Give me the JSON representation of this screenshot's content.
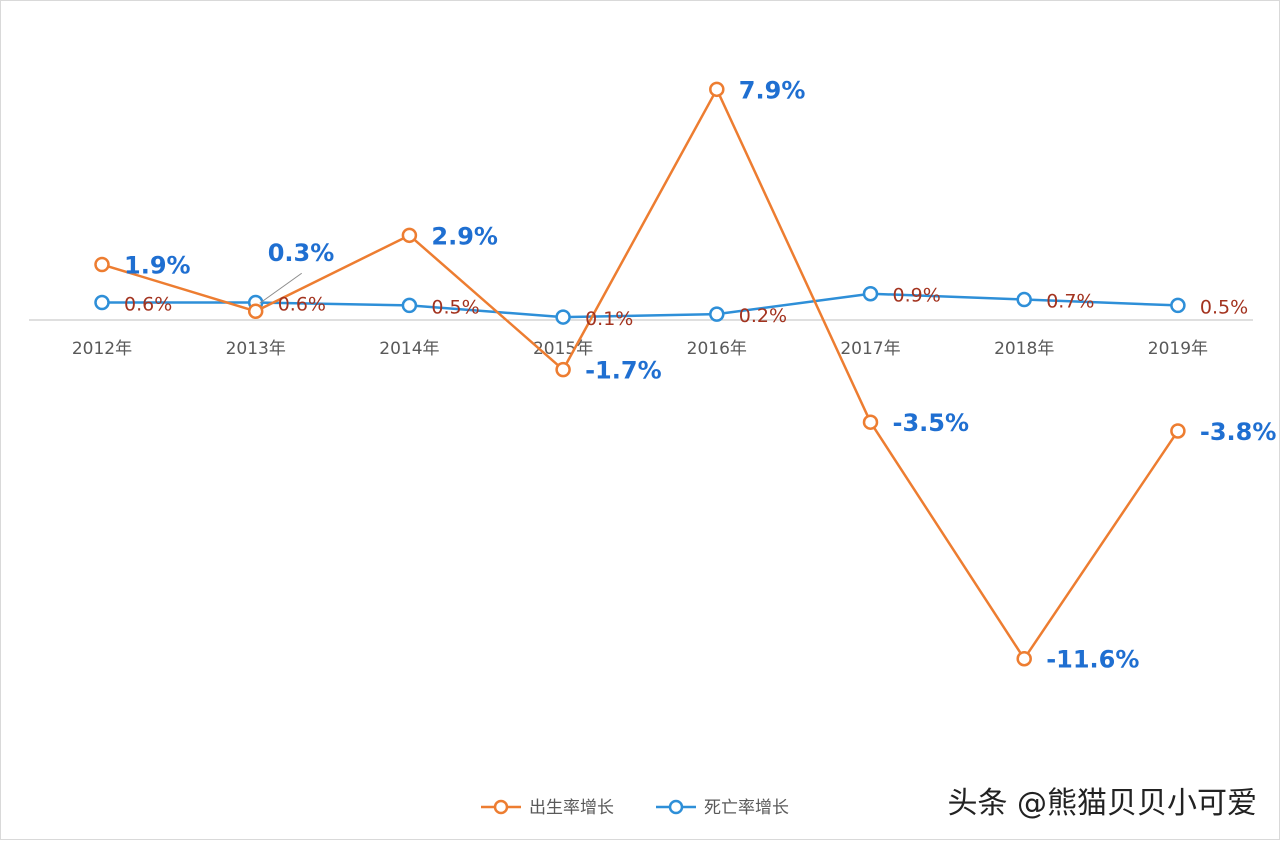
{
  "chart_data": {
    "type": "line",
    "categories": [
      "2012年",
      "2013年",
      "2014年",
      "2015年",
      "2016年",
      "2017年",
      "2018年",
      "2019年"
    ],
    "ylim": [
      -12.5,
      9
    ],
    "grid": false,
    "legend_position": "bottom",
    "series": [
      {
        "name": "出生率增长",
        "color": "#ed7d31",
        "values": [
          1.9,
          0.3,
          2.9,
          -1.7,
          7.9,
          -3.5,
          -11.6,
          -3.8
        ],
        "labels": [
          "1.9%",
          "0.3%",
          "2.9%",
          "-1.7%",
          "7.9%",
          "-3.5%",
          "-11.6%",
          "-3.8%"
        ],
        "label_color": "#1f6fd1"
      },
      {
        "name": "死亡率增长",
        "color": "#2e8fd8",
        "values": [
          0.6,
          0.6,
          0.5,
          0.1,
          0.2,
          0.9,
          0.7,
          0.5
        ],
        "labels": [
          "0.6%",
          "0.6%",
          "0.5%",
          "0.1%",
          "0.2%",
          "0.9%",
          "0.7%",
          "0.5%"
        ],
        "label_color": "#a3331f"
      }
    ]
  },
  "watermark": "头条 @熊猫贝贝小可爱"
}
